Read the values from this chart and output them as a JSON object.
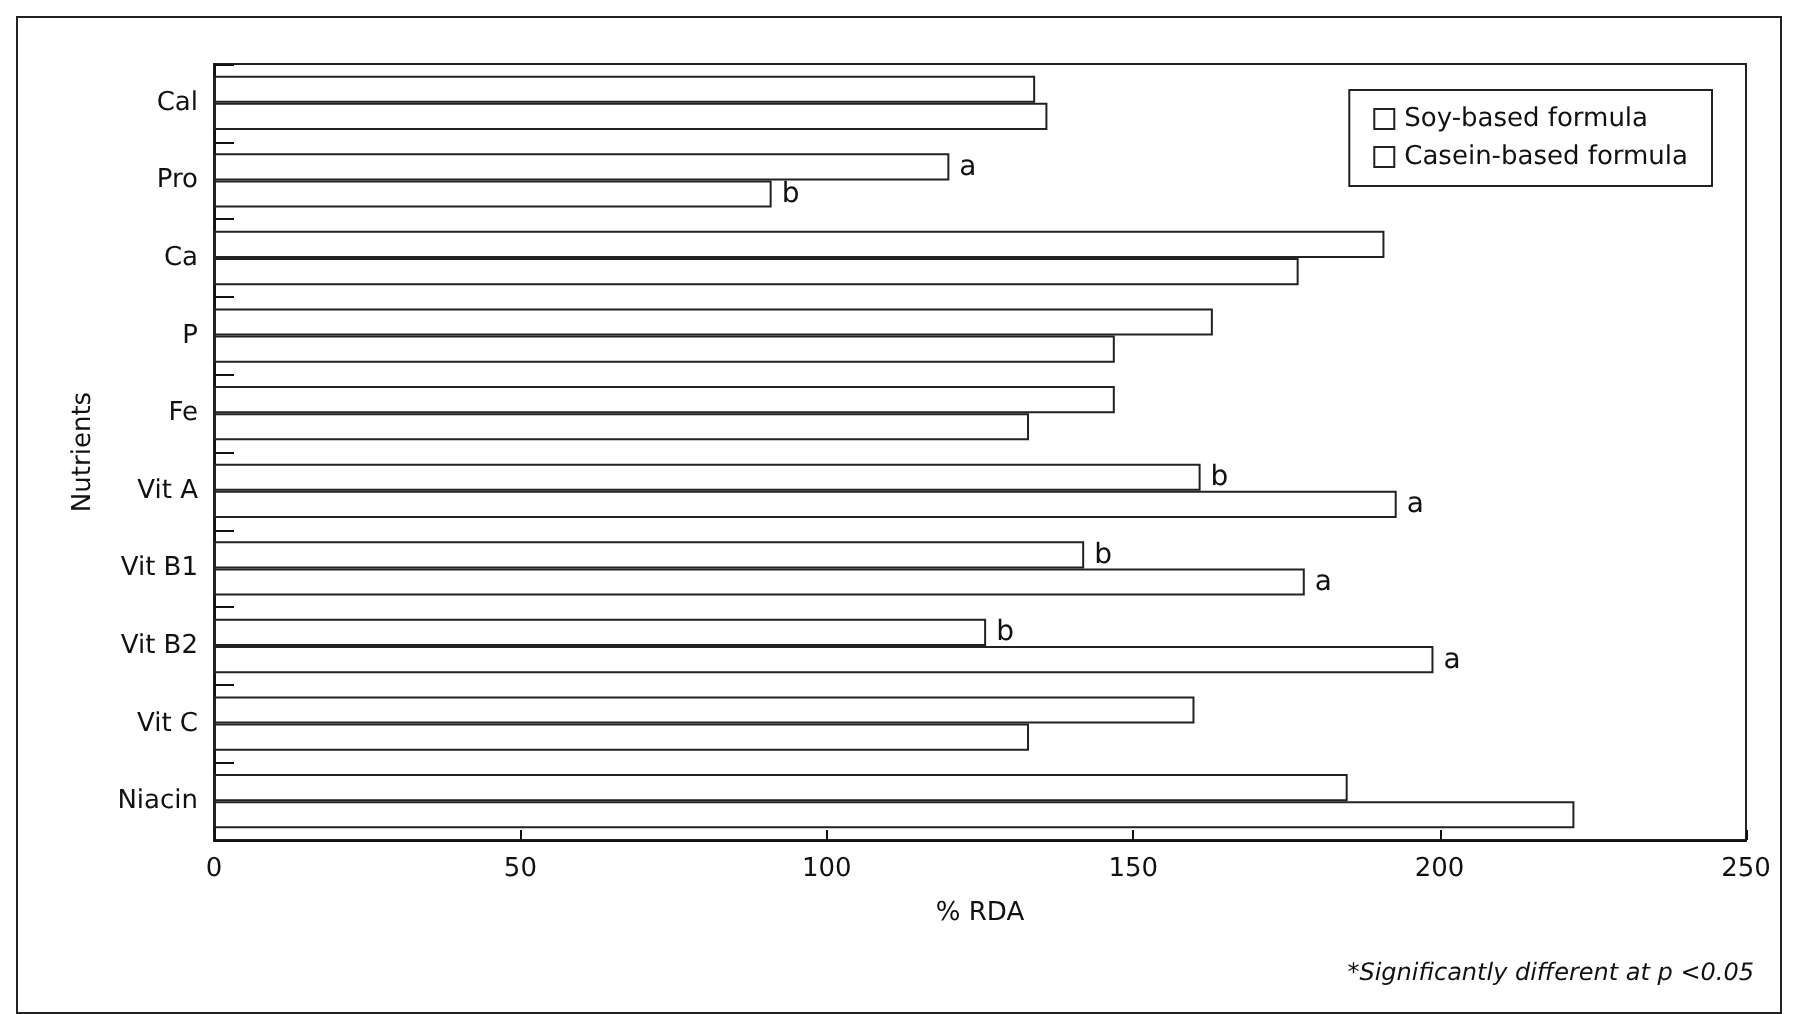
{
  "chart_data": {
    "type": "bar",
    "orientation": "horizontal",
    "categories": [
      "Cal",
      "Pro",
      "Ca",
      "P",
      "Fe",
      "Vit A",
      "Vit B1",
      "Vit B2",
      "Vit C",
      "Niacin"
    ],
    "series": [
      {
        "name": "Soy-based formula",
        "color": "#ffffff",
        "values": [
          134,
          120,
          191,
          163,
          147,
          161,
          142,
          126,
          160,
          185
        ],
        "value_labels": [
          null,
          "a",
          null,
          null,
          null,
          "b",
          "b",
          "b",
          null,
          null
        ]
      },
      {
        "name": "Casein-based formula",
        "color": "#ffffff",
        "values": [
          136,
          91,
          177,
          147,
          133,
          193,
          178,
          199,
          133,
          222
        ],
        "value_labels": [
          null,
          "b",
          null,
          null,
          null,
          "a",
          "a",
          "a",
          null,
          null
        ]
      }
    ],
    "xlabel": "% RDA",
    "ylabel": "Nutrients",
    "xlim": [
      0,
      250
    ],
    "xticks": [
      0,
      50,
      100,
      150,
      200,
      250
    ],
    "annotations": [
      "*Significantly different at p <0.05"
    ],
    "legend": "top right",
    "grid": false
  }
}
